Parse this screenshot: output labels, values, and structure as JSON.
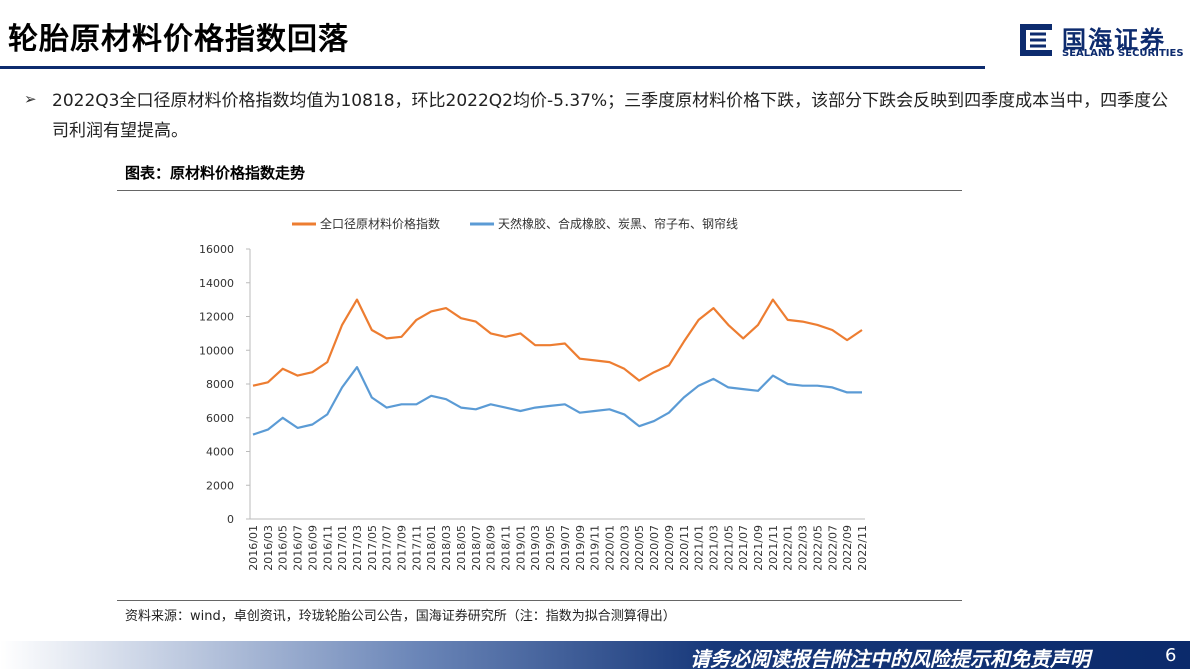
{
  "header": {
    "title": "轮胎原材料价格指数回落",
    "logo_cn": "国海证券",
    "logo_en": "SEALAND SECURITIES"
  },
  "bullet": "2022Q3全口径原材料价格指数均值为10818，环比2022Q2均价-5.37%；三季度原材料价格下跌，该部分下跌会反映到四季度成本当中，四季度公司利润有望提高。",
  "chart_caption": "图表：原材料价格指数走势",
  "chart_data": {
    "type": "line",
    "categories": [
      "2016/01",
      "2016/03",
      "2016/05",
      "2016/07",
      "2016/09",
      "2016/11",
      "2017/01",
      "2017/03",
      "2017/05",
      "2017/07",
      "2017/09",
      "2017/11",
      "2018/01",
      "2018/03",
      "2018/05",
      "2018/07",
      "2018/09",
      "2018/11",
      "2019/01",
      "2019/03",
      "2019/05",
      "2019/07",
      "2019/09",
      "2019/11",
      "2020/01",
      "2020/03",
      "2020/05",
      "2020/07",
      "2020/09",
      "2020/11",
      "2021/01",
      "2021/03",
      "2021/05",
      "2021/07",
      "2021/09",
      "2021/11",
      "2022/01",
      "2022/03",
      "2022/05",
      "2022/07",
      "2022/09",
      "2022/11"
    ],
    "series": [
      {
        "name": "全口径原材料价格指数",
        "color": "#ED7D31",
        "values": [
          7900,
          8100,
          8900,
          8500,
          8700,
          9300,
          11500,
          13000,
          11200,
          10700,
          10800,
          11800,
          12300,
          12500,
          11900,
          11700,
          11000,
          10800,
          11000,
          10300,
          10300,
          10400,
          9500,
          9400,
          9300,
          8900,
          8200,
          8700,
          9100,
          10500,
          11800,
          12500,
          11500,
          10700,
          11500,
          13000,
          11800,
          11700,
          11500,
          11200,
          10600,
          11200
        ]
      },
      {
        "name": "天然橡胶、合成橡胶、炭黑、帘子布、钢帘线",
        "color": "#5B9BD5",
        "values": [
          5000,
          5300,
          6000,
          5400,
          5600,
          6200,
          7800,
          9000,
          7200,
          6600,
          6800,
          6800,
          7300,
          7100,
          6600,
          6500,
          6800,
          6600,
          6400,
          6600,
          6700,
          6800,
          6300,
          6400,
          6500,
          6200,
          5500,
          5800,
          6300,
          7200,
          7900,
          8300,
          7800,
          7700,
          7600,
          8500,
          8000,
          7900,
          7900,
          7800,
          7500,
          7500
        ]
      }
    ],
    "ylim": [
      0,
      16000
    ],
    "yticks": [
      0,
      2000,
      4000,
      6000,
      8000,
      10000,
      12000,
      14000,
      16000
    ],
    "grid": false,
    "legend": "top"
  },
  "source": "资料来源：wind，卓创资讯，玲珑轮胎公司公告，国海证券研究所（注：指数为拟合测算得出）",
  "footer": {
    "disclaimer": "请务必阅读报告附注中的风险提示和免责声明",
    "page_number": "6"
  }
}
